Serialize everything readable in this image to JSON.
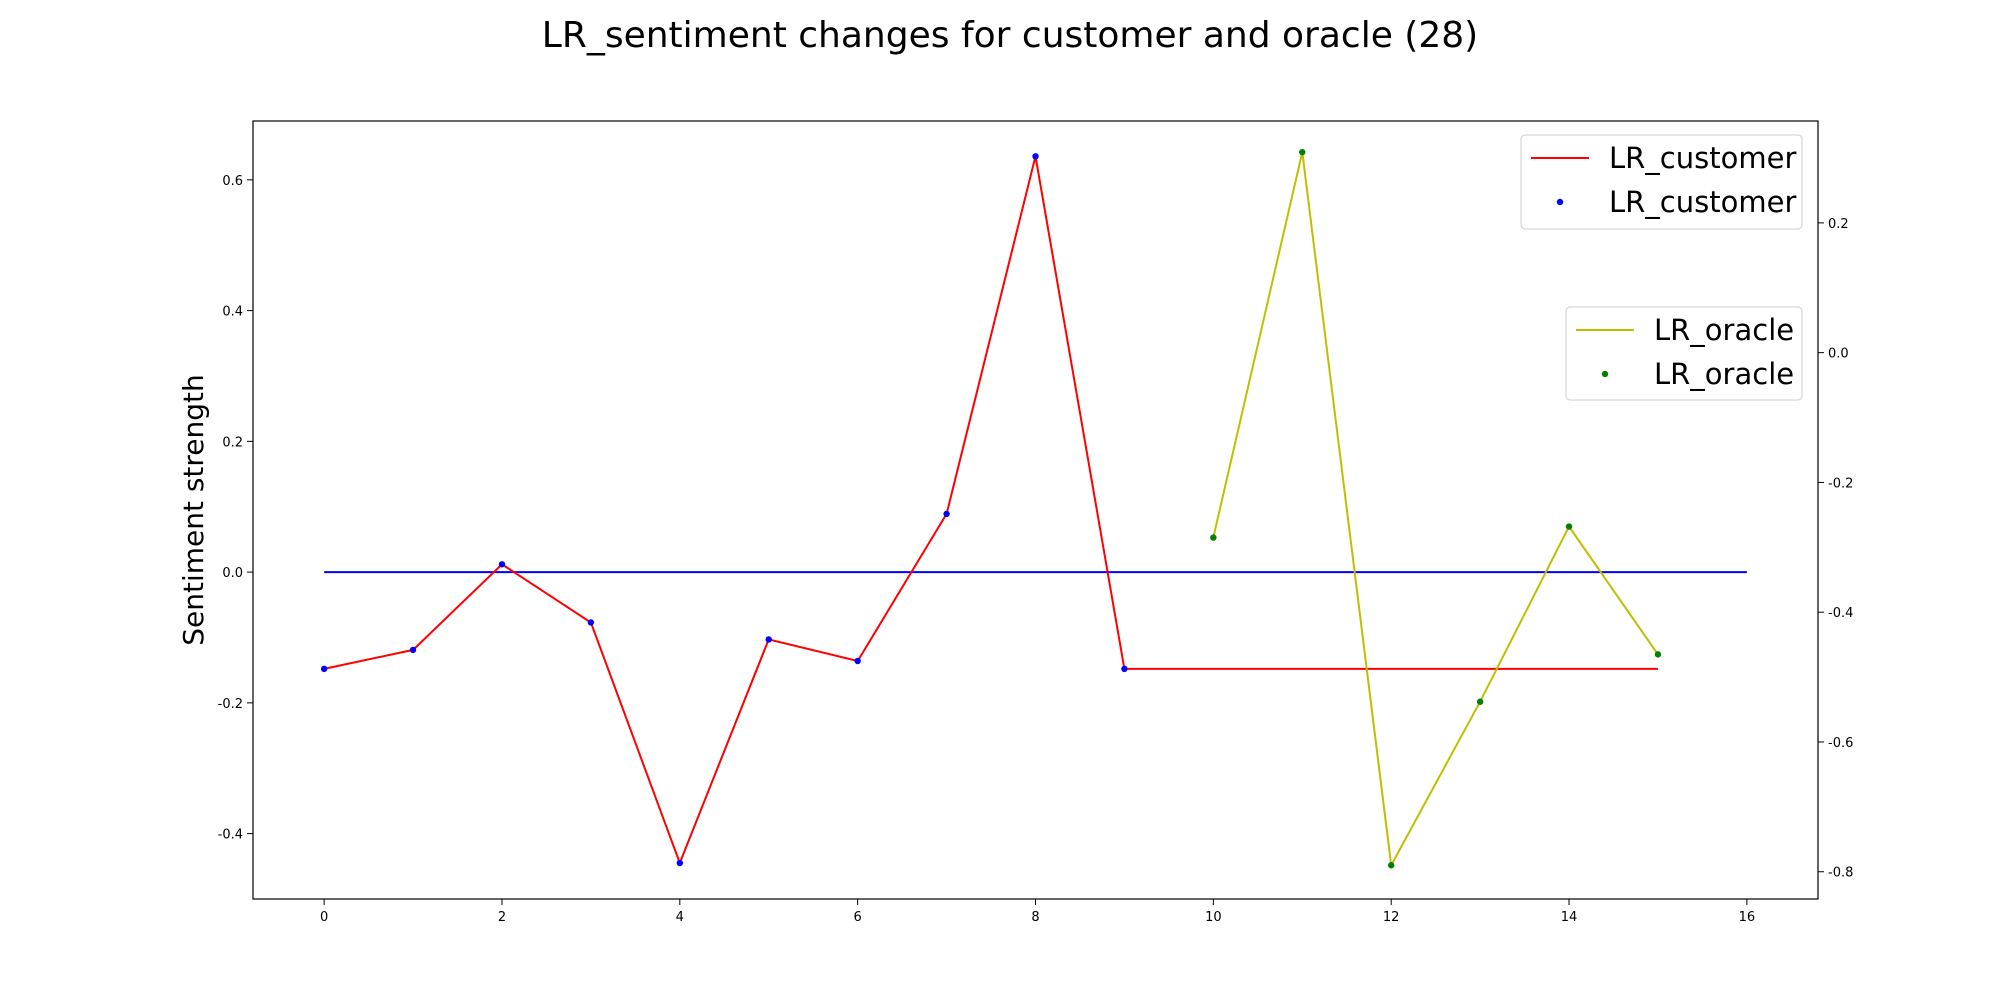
{
  "chart_data": {
    "type": "line",
    "title": "LR_sentiment changes for customer and oracle (28)",
    "xlabel": "",
    "ylabel": "Sentiment strength",
    "xlim": [
      -0.8,
      16.8
    ],
    "ylim": [
      -0.5,
      0.69
    ],
    "y2lim": [
      -0.842,
      0.357
    ],
    "x_ticks": [
      0,
      2,
      4,
      6,
      8,
      10,
      12,
      14,
      16
    ],
    "y_ticks": [
      -0.4,
      -0.2,
      0.0,
      0.2,
      0.4,
      0.6
    ],
    "y2_ticks": [
      -0.8,
      -0.6,
      -0.4,
      -0.2,
      0.0,
      0.2
    ],
    "grid": false,
    "series": [
      {
        "name": "LR_customer",
        "axis": "left",
        "line_color": "#ff0000",
        "marker_color": "#0000ff",
        "x": [
          0,
          1,
          2,
          3,
          4,
          5,
          6,
          7,
          8,
          9,
          10,
          11,
          12,
          13,
          14,
          15
        ],
        "y": [
          -0.148,
          -0.119,
          0.012,
          -0.077,
          -0.445,
          -0.103,
          -0.136,
          0.089,
          0.636,
          -0.148,
          -0.148,
          -0.148,
          -0.148,
          -0.148,
          -0.148,
          -0.148
        ],
        "marker_points": 10
      },
      {
        "name": "LR_oracle",
        "axis": "right",
        "line_color": "#bfbf00",
        "marker_color": "#008000",
        "x": [
          10,
          11,
          12,
          13,
          14,
          15
        ],
        "y": [
          -0.285,
          0.309,
          -0.79,
          -0.538,
          -0.268,
          -0.465
        ]
      }
    ],
    "baseline": {
      "axis": "left",
      "y": 0.0,
      "x_from": 0,
      "x_to": 16,
      "color": "#0000ff"
    },
    "legends": [
      {
        "placement": "top-right",
        "entries": [
          {
            "label": "LR_customer",
            "kind": "line",
            "color": "#ff0000"
          },
          {
            "label": "LR_customer",
            "kind": "marker",
            "color": "#0000ff"
          }
        ]
      },
      {
        "placement": "upper-right",
        "entries": [
          {
            "label": "LR_oracle",
            "kind": "line",
            "color": "#bfbf00"
          },
          {
            "label": "LR_oracle",
            "kind": "marker",
            "color": "#008000"
          }
        ]
      }
    ]
  }
}
